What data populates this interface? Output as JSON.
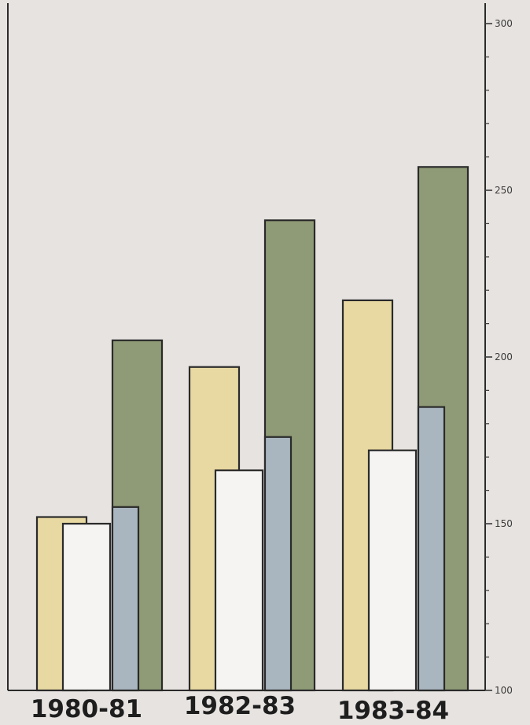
{
  "chart_data": {
    "type": "bar",
    "title": "",
    "xlabel": "",
    "ylabel": "",
    "ylim": [
      100,
      300
    ],
    "y_ticks": [
      100,
      150,
      200,
      250,
      300
    ],
    "categories": [
      "1980-81",
      "1982-83",
      "1983-84"
    ],
    "series": [
      {
        "values": [
          152,
          197,
          217
        ],
        "color": "#e8d9a2"
      },
      {
        "values": [
          150,
          166,
          172
        ],
        "color": "#f5f4f2"
      },
      {
        "values": [
          155,
          176,
          185
        ],
        "color": "#a9b6c0"
      },
      {
        "values": [
          205,
          241,
          257
        ],
        "color": "#8f9a76"
      }
    ],
    "grid": false,
    "legend": "none"
  }
}
